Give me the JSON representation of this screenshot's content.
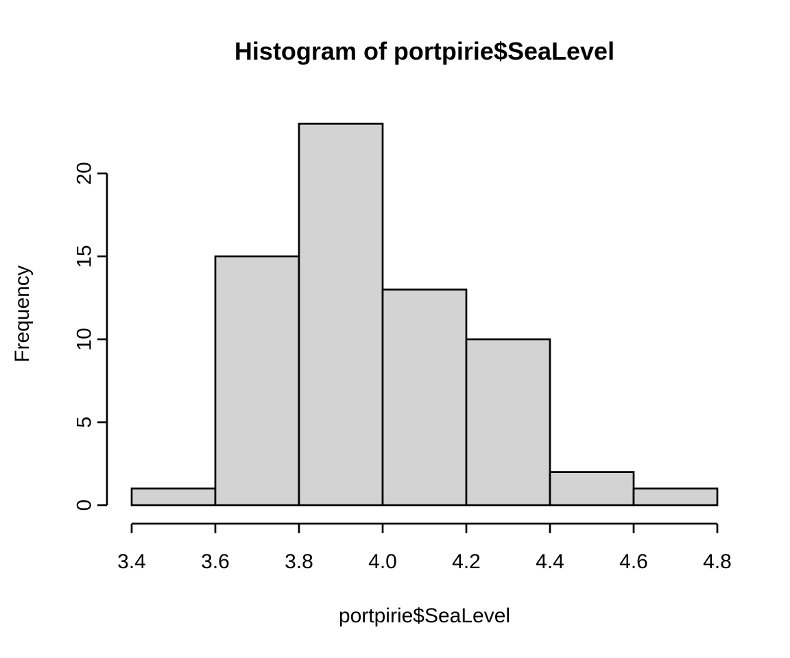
{
  "chart_data": {
    "type": "bar",
    "subtype": "histogram",
    "title": "Histogram of portpirie$SeaLevel",
    "xlabel": "portpirie$SeaLevel",
    "ylabel": "Frequency",
    "bin_breaks": [
      3.4,
      3.6,
      3.8,
      4.0,
      4.2,
      4.4,
      4.6,
      4.8
    ],
    "counts": [
      1,
      15,
      23,
      13,
      10,
      2,
      1
    ],
    "x_ticks": [
      3.4,
      3.6,
      3.8,
      4.0,
      4.2,
      4.4,
      4.6,
      4.8
    ],
    "x_tick_labels": [
      "3.4",
      "3.6",
      "3.8",
      "4.0",
      "4.2",
      "4.4",
      "4.6",
      "4.8"
    ],
    "y_ticks": [
      0,
      5,
      10,
      15,
      20
    ],
    "y_tick_labels": [
      "0",
      "5",
      "10",
      "15",
      "20"
    ],
    "xlim": [
      3.4,
      4.8
    ],
    "ylim": [
      0,
      23
    ],
    "grid": false,
    "legend": "none",
    "colors": {
      "background": "#ffffff",
      "bar_fill": "#d3d3d3",
      "bar_stroke": "#000000",
      "axis": "#000000",
      "text": "#000000"
    }
  }
}
